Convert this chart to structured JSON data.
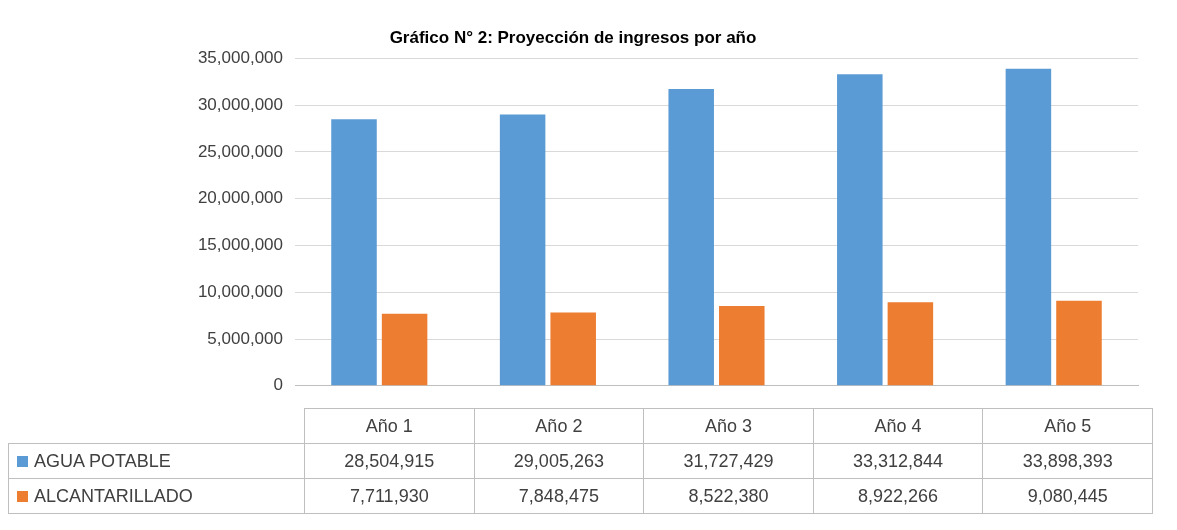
{
  "chart_data": {
    "type": "bar",
    "title": "Gráfico N° 2: Proyección de ingresos por año",
    "categories": [
      "Año 1",
      "Año 2",
      "Año 3",
      "Año 4",
      "Año 5"
    ],
    "series": [
      {
        "name": "AGUA POTABLE",
        "color": "#5b9bd5",
        "values": [
          28504915,
          29005263,
          31727429,
          33312844,
          33898393
        ],
        "value_labels": [
          "28,504,915",
          "29,005,263",
          "31,727,429",
          "33,312,844",
          "33,898,393"
        ]
      },
      {
        "name": "ALCANTARILLADO",
        "color": "#ed7d31",
        "values": [
          7711930,
          7848475,
          8522380,
          8922266,
          9080445
        ],
        "value_labels": [
          "7,711,930",
          "7,848,475",
          "8,522,380",
          "8,922,266",
          "9,080,445"
        ]
      }
    ],
    "ylim": [
      0,
      35000000
    ],
    "yticks": [
      0,
      {
        "value": 5000000,
        "label": "5,000,000"
      },
      {
        "value": 10000000,
        "label": "10,000,000"
      },
      {
        "value": 15000000,
        "label": "15,000,000"
      },
      {
        "value": 20000000,
        "label": "20,000,000"
      },
      {
        "value": 25000000,
        "label": "25,000,000"
      },
      {
        "value": 30000000,
        "label": "30,000,000"
      },
      {
        "value": 35000000,
        "label": "35,000,000"
      }
    ],
    "grid": "y",
    "legend": "bottom"
  }
}
